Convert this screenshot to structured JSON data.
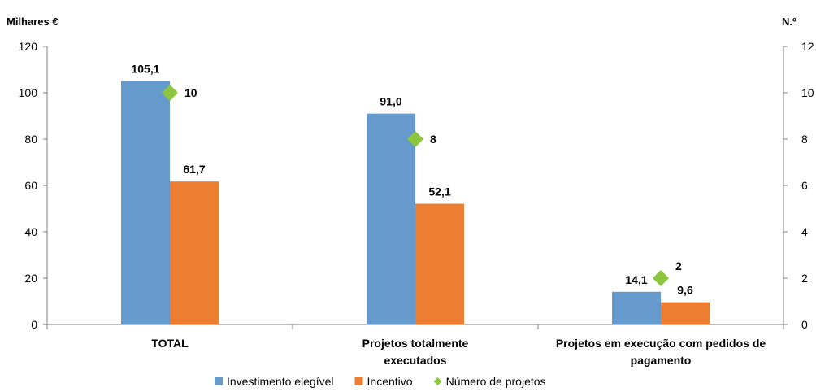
{
  "chart_data": {
    "type": "bar",
    "categories": [
      [
        "TOTAL"
      ],
      [
        "Projetos totalmente",
        "executados"
      ],
      [
        "Projetos em execução com pedidos de",
        "pagamento"
      ]
    ],
    "series": [
      {
        "name": "Investimento elegível",
        "kind": "bar",
        "axis": "left",
        "color": "#6699cc",
        "values": [
          105.1,
          91.0,
          14.1
        ],
        "labels": [
          "105,1",
          "91,0",
          "14,1"
        ]
      },
      {
        "name": "Incentivo",
        "kind": "bar",
        "axis": "left",
        "color": "#ed7d31",
        "values": [
          61.7,
          52.1,
          9.6
        ],
        "labels": [
          "61,7",
          "52,1",
          "9,6"
        ]
      },
      {
        "name": "Número de projetos",
        "kind": "marker",
        "axis": "right",
        "color": "#8cc63f",
        "values": [
          10,
          8,
          2
        ],
        "labels": [
          "10",
          "8",
          "2"
        ]
      }
    ],
    "left_axis": {
      "unit_label": "Milhares €",
      "min": 0,
      "max": 120,
      "step": 20
    },
    "right_axis": {
      "unit_label": "N.º",
      "min": 0,
      "max": 12,
      "step": 2
    },
    "legend_position": "bottom",
    "grid": false
  }
}
